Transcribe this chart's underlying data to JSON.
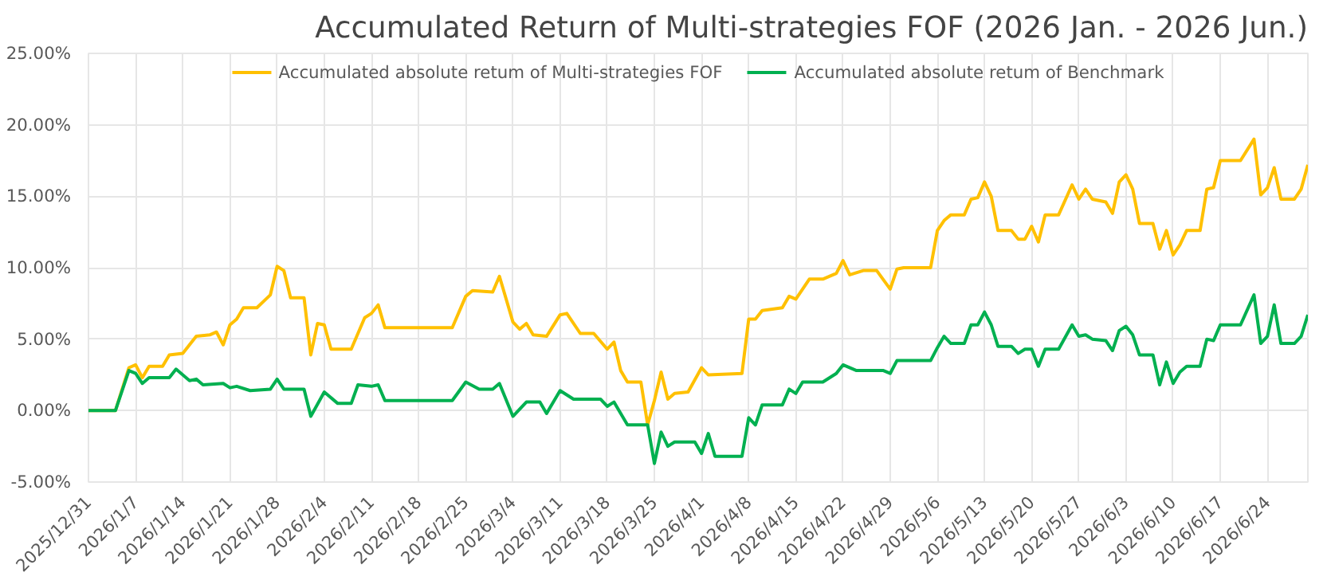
{
  "chart_data": {
    "type": "line",
    "title": "Accumulated Return of Multi-strategies FOF (2026 Jan. - 2026 Jun.)",
    "xlim": [
      "2025-12-31",
      "2026-06-30"
    ],
    "xticks": [
      {
        "value": "2025-12-31",
        "label": "2025/12/31"
      },
      {
        "value": "2026-01-07",
        "label": "2026/1/7"
      },
      {
        "value": "2026-01-14",
        "label": "2026/1/14"
      },
      {
        "value": "2026-01-21",
        "label": "2026/1/21"
      },
      {
        "value": "2026-01-28",
        "label": "2026/1/28"
      },
      {
        "value": "2026-02-04",
        "label": "2026/2/4"
      },
      {
        "value": "2026-02-11",
        "label": "2026/2/11"
      },
      {
        "value": "2026-02-18",
        "label": "2026/2/18"
      },
      {
        "value": "2026-02-25",
        "label": "2026/2/25"
      },
      {
        "value": "2026-03-04",
        "label": "2026/3/4"
      },
      {
        "value": "2026-03-11",
        "label": "2026/3/11"
      },
      {
        "value": "2026-03-18",
        "label": "2026/3/18"
      },
      {
        "value": "2026-03-25",
        "label": "2026/3/25"
      },
      {
        "value": "2026-04-01",
        "label": "2026/4/1"
      },
      {
        "value": "2026-04-08",
        "label": "2026/4/8"
      },
      {
        "value": "2026-04-15",
        "label": "2026/4/15"
      },
      {
        "value": "2026-04-22",
        "label": "2026/4/22"
      },
      {
        "value": "2026-04-29",
        "label": "2026/4/29"
      },
      {
        "value": "2026-05-06",
        "label": "2026/5/6"
      },
      {
        "value": "2026-05-13",
        "label": "2026/5/13"
      },
      {
        "value": "2026-05-20",
        "label": "2026/5/20"
      },
      {
        "value": "2026-05-27",
        "label": "2026/5/27"
      },
      {
        "value": "2026-06-03",
        "label": "2026/6/3"
      },
      {
        "value": "2026-06-10",
        "label": "2026/6/10"
      },
      {
        "value": "2026-06-17",
        "label": "2026/6/17"
      },
      {
        "value": "2026-06-24",
        "label": "2026/6/24"
      }
    ],
    "ylim": [
      -5,
      25
    ],
    "yticks": [
      {
        "value": -5,
        "label": "-5.00%"
      },
      {
        "value": 0,
        "label": "0.00%"
      },
      {
        "value": 5,
        "label": "5.00%"
      },
      {
        "value": 10,
        "label": "10.00%"
      },
      {
        "value": 15,
        "label": "15.00%"
      },
      {
        "value": 20,
        "label": "20.00%"
      },
      {
        "value": 25,
        "label": "25.00%"
      }
    ],
    "grid": true,
    "legend": "top",
    "line_style": "solid",
    "series": [
      {
        "name": "Accumulated absolute retum of Multi-strategies FOF",
        "color": "#ffc000",
        "x": [
          "2025-12-31",
          "2026-01-04",
          "2026-01-06",
          "2026-01-07",
          "2026-01-08",
          "2026-01-09",
          "2026-01-11",
          "2026-01-12",
          "2026-01-14",
          "2026-01-16",
          "2026-01-18",
          "2026-01-19",
          "2026-01-20",
          "2026-01-21",
          "2026-01-22",
          "2026-01-23",
          "2026-01-25",
          "2026-01-27",
          "2026-01-28",
          "2026-01-29",
          "2026-01-30",
          "2026-02-01",
          "2026-02-02",
          "2026-02-03",
          "2026-02-04",
          "2026-02-05",
          "2026-02-08",
          "2026-02-10",
          "2026-02-11",
          "2026-02-12",
          "2026-02-13",
          "2026-02-23",
          "2026-02-25",
          "2026-02-26",
          "2026-03-01",
          "2026-03-02",
          "2026-03-04",
          "2026-03-05",
          "2026-03-06",
          "2026-03-07",
          "2026-03-09",
          "2026-03-11",
          "2026-03-12",
          "2026-03-14",
          "2026-03-16",
          "2026-03-18",
          "2026-03-19",
          "2026-03-20",
          "2026-03-21",
          "2026-03-23",
          "2026-03-24",
          "2026-03-25",
          "2026-03-26",
          "2026-03-27",
          "2026-03-28",
          "2026-03-30",
          "2026-04-01",
          "2026-04-02",
          "2026-04-07",
          "2026-04-08",
          "2026-04-09",
          "2026-04-10",
          "2026-04-13",
          "2026-04-14",
          "2026-04-15",
          "2026-04-17",
          "2026-04-19",
          "2026-04-21",
          "2026-04-22",
          "2026-04-23",
          "2026-04-25",
          "2026-04-27",
          "2026-04-29",
          "2026-04-30",
          "2026-05-01",
          "2026-05-05",
          "2026-05-06",
          "2026-05-07",
          "2026-05-08",
          "2026-05-10",
          "2026-05-11",
          "2026-05-12",
          "2026-05-13",
          "2026-05-14",
          "2026-05-15",
          "2026-05-17",
          "2026-05-18",
          "2026-05-19",
          "2026-05-20",
          "2026-05-21",
          "2026-05-22",
          "2026-05-24",
          "2026-05-26",
          "2026-05-27",
          "2026-05-28",
          "2026-05-29",
          "2026-05-31",
          "2026-06-01",
          "2026-06-02",
          "2026-06-03",
          "2026-06-04",
          "2026-06-05",
          "2026-06-07",
          "2026-06-08",
          "2026-06-09",
          "2026-06-10",
          "2026-06-11",
          "2026-06-12",
          "2026-06-14",
          "2026-06-15",
          "2026-06-16",
          "2026-06-17",
          "2026-06-20",
          "2026-06-22",
          "2026-06-23",
          "2026-06-24",
          "2026-06-25",
          "2026-06-26",
          "2026-06-28",
          "2026-06-29",
          "2026-06-30"
        ],
        "values": [
          0,
          0,
          3.0,
          3.2,
          2.3,
          3.1,
          3.1,
          3.9,
          4.0,
          5.2,
          5.3,
          5.5,
          4.6,
          6.0,
          6.4,
          7.2,
          7.2,
          8.1,
          10.1,
          9.8,
          7.9,
          7.9,
          3.9,
          6.1,
          6.0,
          4.3,
          4.3,
          6.5,
          6.8,
          7.4,
          5.8,
          5.8,
          8.0,
          8.4,
          8.3,
          9.4,
          6.2,
          5.7,
          6.1,
          5.3,
          5.2,
          6.7,
          6.8,
          5.4,
          5.4,
          4.3,
          4.8,
          2.8,
          2.0,
          2.0,
          -1.0,
          0.7,
          2.7,
          0.8,
          1.2,
          1.3,
          3.0,
          2.5,
          2.6,
          6.4,
          6.4,
          7.0,
          7.2,
          8.0,
          7.8,
          9.2,
          9.2,
          9.6,
          10.5,
          9.5,
          9.8,
          9.8,
          8.5,
          9.9,
          10.0,
          10.0,
          12.6,
          13.3,
          13.7,
          13.7,
          14.8,
          14.9,
          16.0,
          15.0,
          12.6,
          12.6,
          12.0,
          12.0,
          12.9,
          11.8,
          13.7,
          13.7,
          15.8,
          14.8,
          15.5,
          14.8,
          14.6,
          13.8,
          16.0,
          16.5,
          15.5,
          13.1,
          13.1,
          11.3,
          12.6,
          10.9,
          11.6,
          12.6,
          12.6,
          15.5,
          15.6,
          17.5,
          17.5,
          19.0,
          15.1,
          15.6,
          17.0,
          14.8,
          14.8,
          15.5,
          17.2
        ]
      },
      {
        "name": "Accumulated absolute retum of Benchmark",
        "color": "#00b050",
        "x": [
          "2025-12-31",
          "2026-01-04",
          "2026-01-06",
          "2026-01-07",
          "2026-01-08",
          "2026-01-09",
          "2026-01-12",
          "2026-01-13",
          "2026-01-15",
          "2026-01-16",
          "2026-01-17",
          "2026-01-20",
          "2026-01-21",
          "2026-01-22",
          "2026-01-24",
          "2026-01-27",
          "2026-01-28",
          "2026-01-29",
          "2026-02-01",
          "2026-02-02",
          "2026-02-04",
          "2026-02-06",
          "2026-02-08",
          "2026-02-09",
          "2026-02-11",
          "2026-02-12",
          "2026-02-13",
          "2026-02-23",
          "2026-02-25",
          "2026-02-27",
          "2026-03-01",
          "2026-03-02",
          "2026-03-04",
          "2026-03-06",
          "2026-03-08",
          "2026-03-09",
          "2026-03-11",
          "2026-03-13",
          "2026-03-17",
          "2026-03-18",
          "2026-03-19",
          "2026-03-21",
          "2026-03-24",
          "2026-03-25",
          "2026-03-26",
          "2026-03-27",
          "2026-03-28",
          "2026-03-31",
          "2026-04-01",
          "2026-04-02",
          "2026-04-03",
          "2026-04-07",
          "2026-04-08",
          "2026-04-09",
          "2026-04-10",
          "2026-04-13",
          "2026-04-14",
          "2026-04-15",
          "2026-04-16",
          "2026-04-19",
          "2026-04-21",
          "2026-04-22",
          "2026-04-24",
          "2026-04-28",
          "2026-04-29",
          "2026-04-30",
          "2026-05-05",
          "2026-05-06",
          "2026-05-07",
          "2026-05-08",
          "2026-05-10",
          "2026-05-11",
          "2026-05-12",
          "2026-05-13",
          "2026-05-14",
          "2026-05-15",
          "2026-05-17",
          "2026-05-18",
          "2026-05-19",
          "2026-05-20",
          "2026-05-21",
          "2026-05-22",
          "2026-05-24",
          "2026-05-26",
          "2026-05-27",
          "2026-05-28",
          "2026-05-29",
          "2026-05-31",
          "2026-06-01",
          "2026-06-02",
          "2026-06-03",
          "2026-06-04",
          "2026-06-05",
          "2026-06-07",
          "2026-06-08",
          "2026-06-09",
          "2026-06-10",
          "2026-06-11",
          "2026-06-12",
          "2026-06-14",
          "2026-06-15",
          "2026-06-16",
          "2026-06-17",
          "2026-06-20",
          "2026-06-22",
          "2026-06-23",
          "2026-06-24",
          "2026-06-25",
          "2026-06-26",
          "2026-06-28",
          "2026-06-29",
          "2026-06-30"
        ],
        "values": [
          0,
          0,
          2.8,
          2.6,
          1.9,
          2.3,
          2.3,
          2.9,
          2.1,
          2.2,
          1.8,
          1.9,
          1.6,
          1.7,
          1.4,
          1.5,
          2.2,
          1.5,
          1.5,
          -0.4,
          1.3,
          0.5,
          0.5,
          1.8,
          1.7,
          1.8,
          0.7,
          0.7,
          2.0,
          1.5,
          1.5,
          1.9,
          -0.4,
          0.6,
          0.6,
          -0.2,
          1.4,
          0.8,
          0.8,
          0.3,
          0.6,
          -1.0,
          -1.0,
          -3.7,
          -1.5,
          -2.5,
          -2.2,
          -2.2,
          -3.0,
          -1.6,
          -3.2,
          -3.2,
          -0.5,
          -1.0,
          0.4,
          0.4,
          1.5,
          1.2,
          2.0,
          2.0,
          2.6,
          3.2,
          2.8,
          2.8,
          2.6,
          3.5,
          3.5,
          4.4,
          5.2,
          4.7,
          4.7,
          6.0,
          6.0,
          6.9,
          6.0,
          4.5,
          4.5,
          4.0,
          4.3,
          4.3,
          3.1,
          4.3,
          4.3,
          6.0,
          5.2,
          5.3,
          5.0,
          4.9,
          4.2,
          5.6,
          5.9,
          5.3,
          3.9,
          3.9,
          1.8,
          3.4,
          1.9,
          2.7,
          3.1,
          3.1,
          5.0,
          4.9,
          6.0,
          6.0,
          8.1,
          4.7,
          5.2,
          7.4,
          4.7,
          4.7,
          5.2,
          6.7
        ]
      }
    ]
  }
}
